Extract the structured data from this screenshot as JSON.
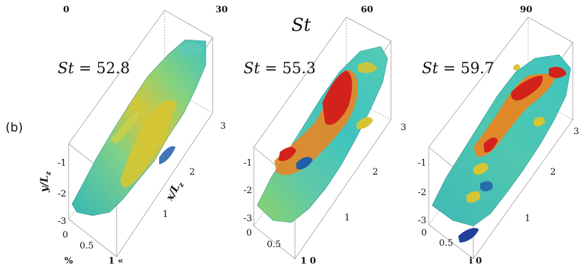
{
  "top_axis": {
    "ticks": [
      "0",
      "30",
      "60",
      "90"
    ],
    "title": "St"
  },
  "panel_label": "(b)",
  "panels": [
    {
      "st_symbol": "St",
      "st_value": " = 52.8",
      "y_ticks": [
        "-1",
        "-2",
        "-3"
      ],
      "x_ticks": [
        "1",
        "2",
        "3"
      ],
      "z_ticks": [
        "0",
        "0.5"
      ],
      "y_axis_label": "y/L",
      "y_axis_sub": "z",
      "x_axis_label": "x/L",
      "x_axis_sub": "z"
    },
    {
      "st_symbol": "St",
      "st_value": " = 55.3",
      "y_ticks": [
        "-1",
        "-2",
        "-3"
      ],
      "x_ticks": [
        "1",
        "2",
        "3"
      ],
      "z_ticks": [
        "0",
        "0.5"
      ]
    },
    {
      "st_symbol": "St",
      "st_value": " = 59.7",
      "y_ticks": [
        "-1",
        "-2",
        "-3"
      ],
      "x_ticks": [
        "1",
        "2",
        "3"
      ],
      "z_ticks": [
        "0",
        "0.5"
      ]
    }
  ],
  "bottom_marks": [
    "%",
    "1 «",
    "1  0",
    "i  0"
  ],
  "colors": {
    "cyan": "#3fc7c2",
    "teal": "#2aa8a8",
    "green": "#8ccf5a",
    "yellow": "#d7c736",
    "orange": "#e0892a",
    "red": "#d3221c",
    "blue": "#1f5ea8",
    "frame": "#999999"
  }
}
